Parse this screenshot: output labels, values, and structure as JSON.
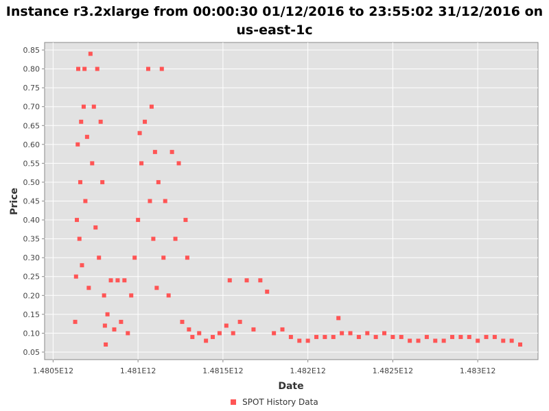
{
  "title_line1": "Instance r3.2xlarge from 00:00:30 01/12/2016 to 23:55:02 31/12/2016 on",
  "title_line2": "us-east-1c",
  "colors": {
    "series": "#FF5555",
    "plot_bg": "#E2E2E2",
    "grid": "#FFFFFF"
  },
  "chart_data": {
    "type": "scatter",
    "title": "Instance r3.2xlarge from 00:00:30 01/12/2016 to 23:55:02 31/12/2016 on us-east-1c",
    "xlabel": "Date",
    "ylabel": "Price",
    "xlim": [
      1480450000000,
      1483355000000
    ],
    "ylim": [
      0.03,
      0.87
    ],
    "xticks": [
      1480500000000,
      1481000000000,
      1481500000000,
      1482000000000,
      1482500000000,
      1483000000000
    ],
    "xtick_labels": [
      "1.4805E12",
      "1.481E12",
      "1.4815E12",
      "1.482E12",
      "1.4825E12",
      "1.483E12"
    ],
    "yticks": [
      0.05,
      0.1,
      0.15,
      0.2,
      0.25,
      0.3,
      0.35,
      0.4,
      0.45,
      0.5,
      0.55,
      0.6,
      0.65,
      0.7,
      0.75,
      0.8,
      0.85
    ],
    "ytick_labels": [
      "0.05",
      "0.10",
      "0.15",
      "0.20",
      "0.25",
      "0.30",
      "0.35",
      "0.40",
      "0.45",
      "0.50",
      "0.55",
      "0.60",
      "0.65",
      "0.70",
      "0.75",
      "0.80",
      "0.85"
    ],
    "grid": true,
    "legend_position": "bottom-center",
    "series": [
      {
        "name": "SPOT History Data",
        "points": [
          [
            1480630000000,
            0.13
          ],
          [
            1480635000000,
            0.25
          ],
          [
            1480640000000,
            0.4
          ],
          [
            1480645000000,
            0.6
          ],
          [
            1480648000000,
            0.8
          ],
          [
            1480655000000,
            0.35
          ],
          [
            1480660000000,
            0.5
          ],
          [
            1480665000000,
            0.66
          ],
          [
            1480670000000,
            0.28
          ],
          [
            1480680000000,
            0.7
          ],
          [
            1480685000000,
            0.8
          ],
          [
            1480690000000,
            0.45
          ],
          [
            1480700000000,
            0.62
          ],
          [
            1480710000000,
            0.22
          ],
          [
            1480720000000,
            0.84
          ],
          [
            1480730000000,
            0.55
          ],
          [
            1480740000000,
            0.7
          ],
          [
            1480750000000,
            0.38
          ],
          [
            1480760000000,
            0.8
          ],
          [
            1480770000000,
            0.3
          ],
          [
            1480780000000,
            0.66
          ],
          [
            1480790000000,
            0.5
          ],
          [
            1480800000000,
            0.2
          ],
          [
            1480805000000,
            0.12
          ],
          [
            1480810000000,
            0.07
          ],
          [
            1480820000000,
            0.15
          ],
          [
            1480840000000,
            0.24
          ],
          [
            1480860000000,
            0.11
          ],
          [
            1480880000000,
            0.24
          ],
          [
            1480900000000,
            0.13
          ],
          [
            1480920000000,
            0.24
          ],
          [
            1480940000000,
            0.1
          ],
          [
            1480960000000,
            0.2
          ],
          [
            1480980000000,
            0.3
          ],
          [
            1481000000000,
            0.4
          ],
          [
            1481010000000,
            0.63
          ],
          [
            1481020000000,
            0.55
          ],
          [
            1481040000000,
            0.66
          ],
          [
            1481060000000,
            0.8
          ],
          [
            1481070000000,
            0.45
          ],
          [
            1481080000000,
            0.7
          ],
          [
            1481090000000,
            0.35
          ],
          [
            1481100000000,
            0.58
          ],
          [
            1481110000000,
            0.22
          ],
          [
            1481120000000,
            0.5
          ],
          [
            1481140000000,
            0.8
          ],
          [
            1481150000000,
            0.3
          ],
          [
            1481160000000,
            0.45
          ],
          [
            1481180000000,
            0.2
          ],
          [
            1481200000000,
            0.58
          ],
          [
            1481220000000,
            0.35
          ],
          [
            1481240000000,
            0.55
          ],
          [
            1481260000000,
            0.13
          ],
          [
            1481280000000,
            0.4
          ],
          [
            1481290000000,
            0.3
          ],
          [
            1481300000000,
            0.11
          ],
          [
            1481320000000,
            0.09
          ],
          [
            1481360000000,
            0.1
          ],
          [
            1481400000000,
            0.08
          ],
          [
            1481440000000,
            0.09
          ],
          [
            1481480000000,
            0.1
          ],
          [
            1481520000000,
            0.12
          ],
          [
            1481540000000,
            0.24
          ],
          [
            1481560000000,
            0.1
          ],
          [
            1481600000000,
            0.13
          ],
          [
            1481640000000,
            0.24
          ],
          [
            1481680000000,
            0.11
          ],
          [
            1481720000000,
            0.24
          ],
          [
            1481760000000,
            0.21
          ],
          [
            1481800000000,
            0.1
          ],
          [
            1481850000000,
            0.11
          ],
          [
            1481900000000,
            0.09
          ],
          [
            1481950000000,
            0.08
          ],
          [
            1482000000000,
            0.08
          ],
          [
            1482050000000,
            0.09
          ],
          [
            1482100000000,
            0.09
          ],
          [
            1482150000000,
            0.09
          ],
          [
            1482180000000,
            0.14
          ],
          [
            1482200000000,
            0.1
          ],
          [
            1482250000000,
            0.1
          ],
          [
            1482300000000,
            0.09
          ],
          [
            1482350000000,
            0.1
          ],
          [
            1482400000000,
            0.09
          ],
          [
            1482450000000,
            0.1
          ],
          [
            1482500000000,
            0.09
          ],
          [
            1482550000000,
            0.09
          ],
          [
            1482600000000,
            0.08
          ],
          [
            1482650000000,
            0.08
          ],
          [
            1482700000000,
            0.09
          ],
          [
            1482750000000,
            0.08
          ],
          [
            1482800000000,
            0.08
          ],
          [
            1482850000000,
            0.09
          ],
          [
            1482900000000,
            0.09
          ],
          [
            1482950000000,
            0.09
          ],
          [
            1483000000000,
            0.08
          ],
          [
            1483050000000,
            0.09
          ],
          [
            1483100000000,
            0.09
          ],
          [
            1483150000000,
            0.08
          ],
          [
            1483200000000,
            0.08
          ],
          [
            1483250000000,
            0.07
          ]
        ]
      }
    ]
  }
}
